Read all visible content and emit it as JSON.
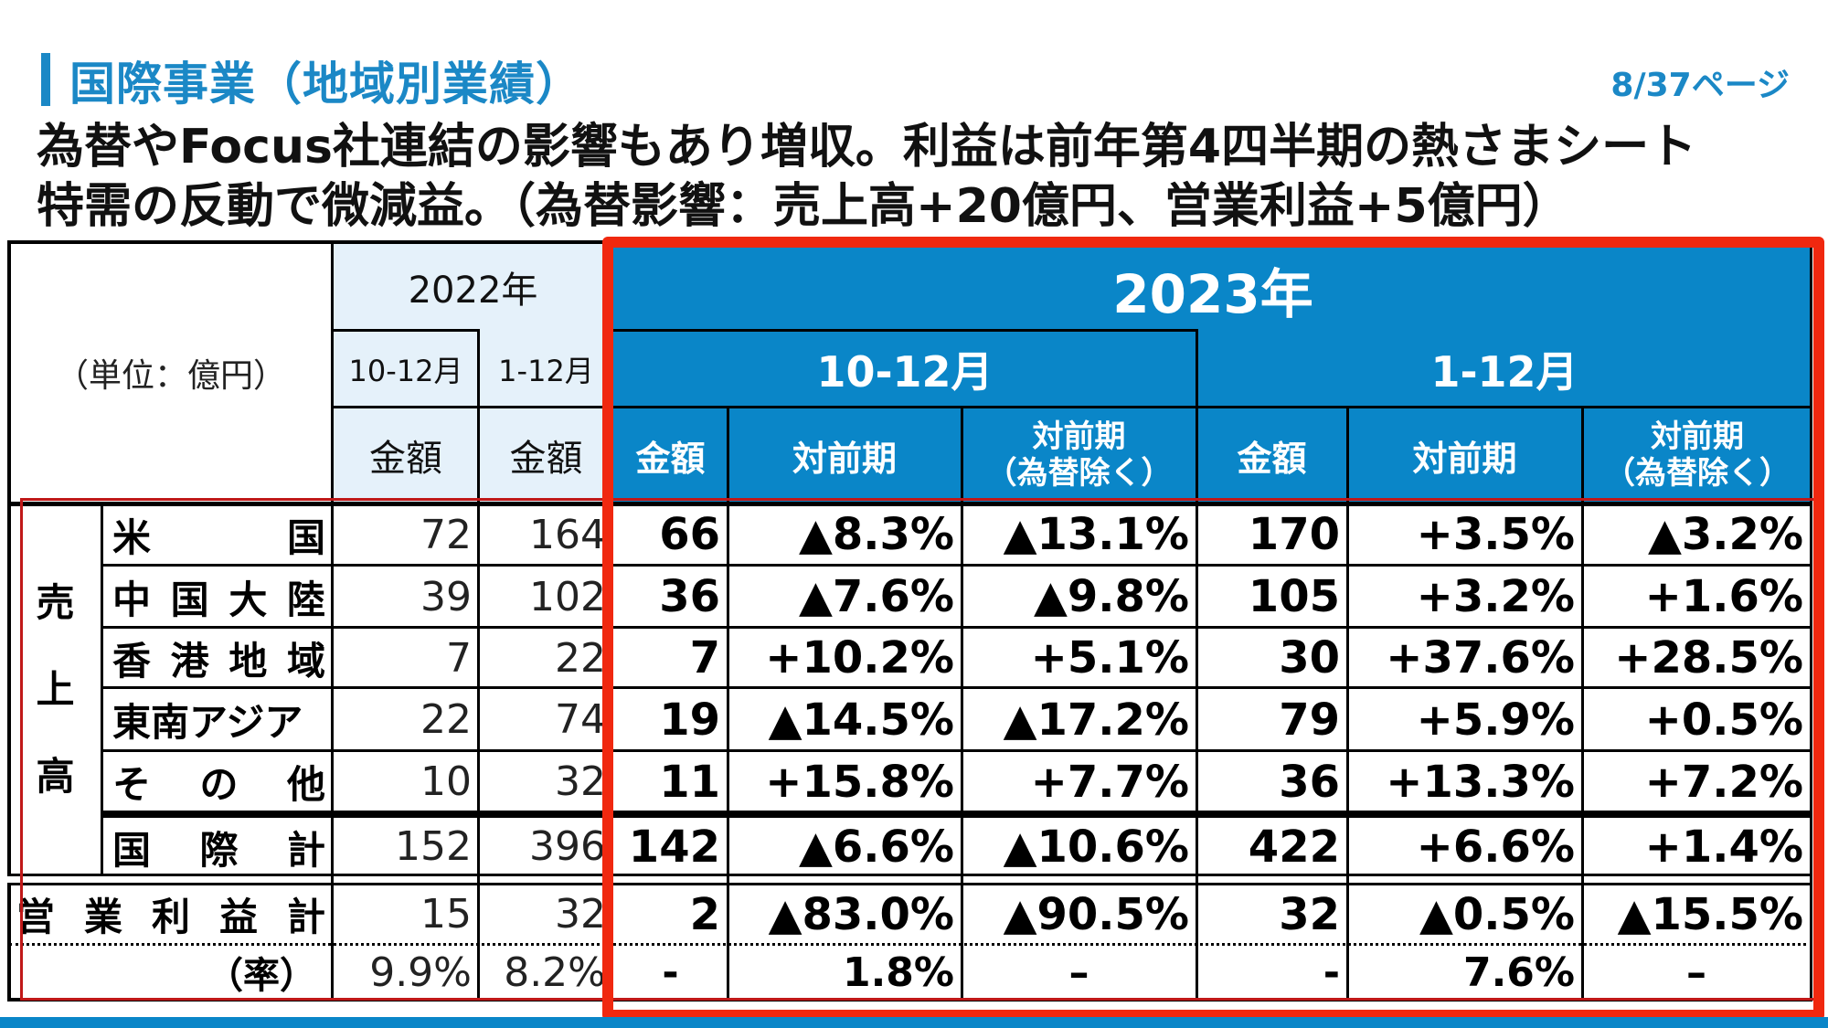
{
  "header": {
    "title": "国際事業（地域別業績）",
    "page_number": "8/37ページ",
    "subtitle_line1": "為替やFocus社連結の影響もあり増収。利益は前年第4四半期の熱さまシート",
    "subtitle_line2": "特需の反動で微減益。（為替影響：売上高+20億円、営業利益+5億円）"
  },
  "colors": {
    "accent_blue": "#1b88c6",
    "header_blue": "#0a86c8",
    "header_light": "#e5f1fa",
    "highlight_red": "#f0280f"
  },
  "table": {
    "unit_label": "（単位：億円）",
    "year_2022": "2022年",
    "year_2023": "2023年",
    "period_q4": "10-12月",
    "period_full": "1-12月",
    "amount_label": "金額",
    "yoy_label": "対前期",
    "yoy_exfx_line1": "対前期",
    "yoy_exfx_line2": "（為替除く）",
    "sales_group_label": [
      "売",
      "上",
      "高"
    ],
    "columns": [
      "2022 10-12月 金額",
      "2022 1-12月 金額",
      "2023 10-12月 金額",
      "2023 10-12月 対前期",
      "2023 10-12月 対前期（為替除く）",
      "2023 1-12月 金額",
      "2023 1-12月 対前期",
      "2023 1-12月 対前期（為替除く）"
    ],
    "rows": [
      {
        "label": [
          "米",
          "国"
        ],
        "values": [
          "72",
          "164",
          "66",
          "▲8.3%",
          "▲13.1%",
          "170",
          "+3.5%",
          "▲3.2%"
        ]
      },
      {
        "label": [
          "中",
          "国",
          "大",
          "陸"
        ],
        "values": [
          "39",
          "102",
          "36",
          "▲7.6%",
          "▲9.8%",
          "105",
          "+3.2%",
          "+1.6%"
        ]
      },
      {
        "label": [
          "香",
          "港",
          "地",
          "域"
        ],
        "values": [
          "7",
          "22",
          "7",
          "+10.2%",
          "+5.1%",
          "30",
          "+37.6%",
          "+28.5%"
        ]
      },
      {
        "label": [
          "東南アジア"
        ],
        "values": [
          "22",
          "74",
          "19",
          "▲14.5%",
          "▲17.2%",
          "79",
          "+5.9%",
          "+0.5%"
        ]
      },
      {
        "label": [
          "そ",
          "の",
          "他"
        ],
        "values": [
          "10",
          "32",
          "11",
          "+15.8%",
          "+7.7%",
          "36",
          "+13.3%",
          "+7.2%"
        ]
      },
      {
        "label": [
          "国",
          "際",
          "計"
        ],
        "values": [
          "152",
          "396",
          "142",
          "▲6.6%",
          "▲10.6%",
          "422",
          "+6.6%",
          "+1.4%"
        ]
      }
    ],
    "operating_profit": {
      "label": [
        "営",
        "業",
        "利",
        "益",
        "計"
      ],
      "values": [
        "15",
        "32",
        "2",
        "▲83.0%",
        "▲90.5%",
        "32",
        "▲0.5%",
        "▲15.5%"
      ]
    },
    "margin": {
      "label": "（率）",
      "values": [
        "9.9%",
        "8.2%",
        "-",
        "1.8%",
        "–",
        "-",
        "7.6%",
        "–"
      ]
    }
  }
}
